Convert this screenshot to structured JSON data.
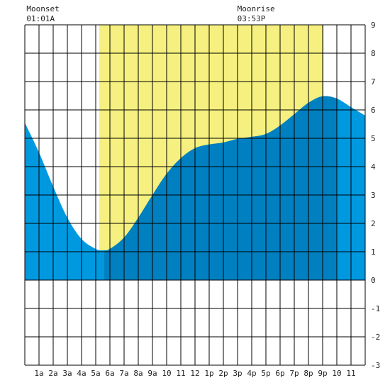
{
  "chart_data": {
    "type": "area",
    "title": "",
    "xlabel": "",
    "ylabel": "",
    "x_tick_labels": [
      "1a",
      "2a",
      "3a",
      "4a",
      "5a",
      "6a",
      "7a",
      "8a",
      "9a",
      "10",
      "11",
      "12",
      "1p",
      "2p",
      "3p",
      "4p",
      "5p",
      "6p",
      "7p",
      "8p",
      "9p",
      "10",
      "11"
    ],
    "y_tick_labels": [
      "9",
      "8",
      "7",
      "6",
      "5",
      "4",
      "3",
      "2",
      "1",
      "0",
      "-1",
      "-2",
      "-3"
    ],
    "xlim": [
      0,
      24
    ],
    "ylim": [
      -3,
      9
    ],
    "grid": true,
    "daylight_hours": [
      5.25,
      21.1
    ],
    "tide_points": [
      {
        "hour": 0,
        "height": 5.55
      },
      {
        "hour": 1,
        "height": 4.5
      },
      {
        "hour": 2,
        "height": 3.3
      },
      {
        "hour": 3,
        "height": 2.2
      },
      {
        "hour": 4,
        "height": 1.45
      },
      {
        "hour": 5,
        "height": 1.1
      },
      {
        "hour": 5.5,
        "height": 1.05
      },
      {
        "hour": 6,
        "height": 1.1
      },
      {
        "hour": 7,
        "height": 1.5
      },
      {
        "hour": 8,
        "height": 2.2
      },
      {
        "hour": 9,
        "height": 3.0
      },
      {
        "hour": 10,
        "height": 3.75
      },
      {
        "hour": 11,
        "height": 4.3
      },
      {
        "hour": 12,
        "height": 4.65
      },
      {
        "hour": 13,
        "height": 4.78
      },
      {
        "hour": 14,
        "height": 4.85
      },
      {
        "hour": 15,
        "height": 4.98
      },
      {
        "hour": 16,
        "height": 5.05
      },
      {
        "hour": 17,
        "height": 5.15
      },
      {
        "hour": 18,
        "height": 5.45
      },
      {
        "hour": 19,
        "height": 5.85
      },
      {
        "hour": 20,
        "height": 6.25
      },
      {
        "hour": 21,
        "height": 6.48
      },
      {
        "hour": 22,
        "height": 6.4
      },
      {
        "hour": 23,
        "height": 6.1
      },
      {
        "hour": 24,
        "height": 5.8
      }
    ],
    "dark_segment_hours": [
      5.6,
      22.0
    ],
    "annotations": [
      {
        "label": "Moonset",
        "time": "01:01A",
        "hour": 1.02
      },
      {
        "label": "Moonrise",
        "time": "03:53P",
        "hour": 15.88
      }
    ],
    "colors": {
      "daylight": "#f5f07f",
      "tide_light": "#0099e0",
      "tide_dark": "#0080c0",
      "grid": "#000000"
    }
  }
}
